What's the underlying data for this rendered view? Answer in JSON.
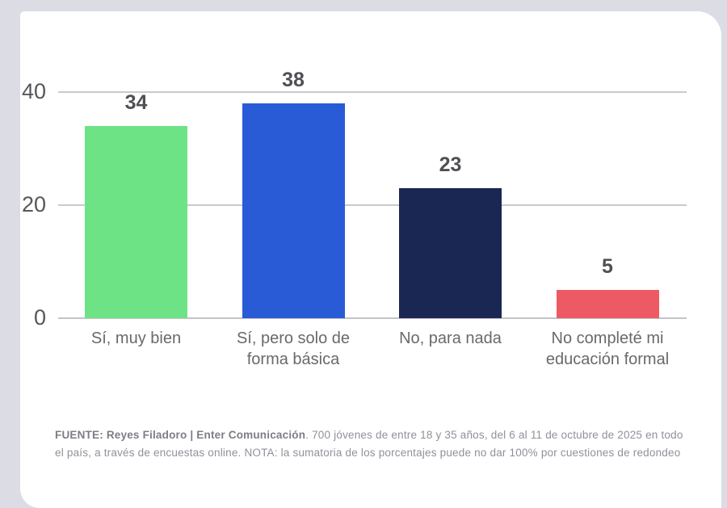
{
  "background_color": "#dcdce5",
  "card_color": "#ffffff",
  "chart_data": {
    "type": "bar",
    "title": "",
    "xlabel": "",
    "ylabel": "",
    "categories": [
      "Sí, muy bien",
      "Sí, pero solo de\nforma básica",
      "No, para nada",
      "No completé mi\neducación formal"
    ],
    "values": [
      34,
      38,
      23,
      5
    ],
    "value_labels": [
      "34",
      "38",
      "23",
      "5"
    ],
    "bar_colors": [
      "#6ee386",
      "#2a5bd7",
      "#1b2753",
      "#ee5a64"
    ],
    "yticks": [
      {
        "value": 40,
        "label": "40"
      },
      {
        "value": 20,
        "label": "20"
      },
      {
        "value": 0,
        "label": "0"
      }
    ],
    "ylim": [
      0,
      42
    ],
    "grid": true,
    "legend_position": "none"
  },
  "footer": {
    "source_bold": "FUENTE: Reyes Filadoro | Enter Comunicación",
    "source_rest": ". 700 jóvenes de entre 18 y 35 años, del 6 al 11 de octubre de 2025 en todo el país, a través de encuestas online.  NOTA: la sumatoria de los porcentajes puede no dar 100% por cuestiones de redondeo"
  }
}
